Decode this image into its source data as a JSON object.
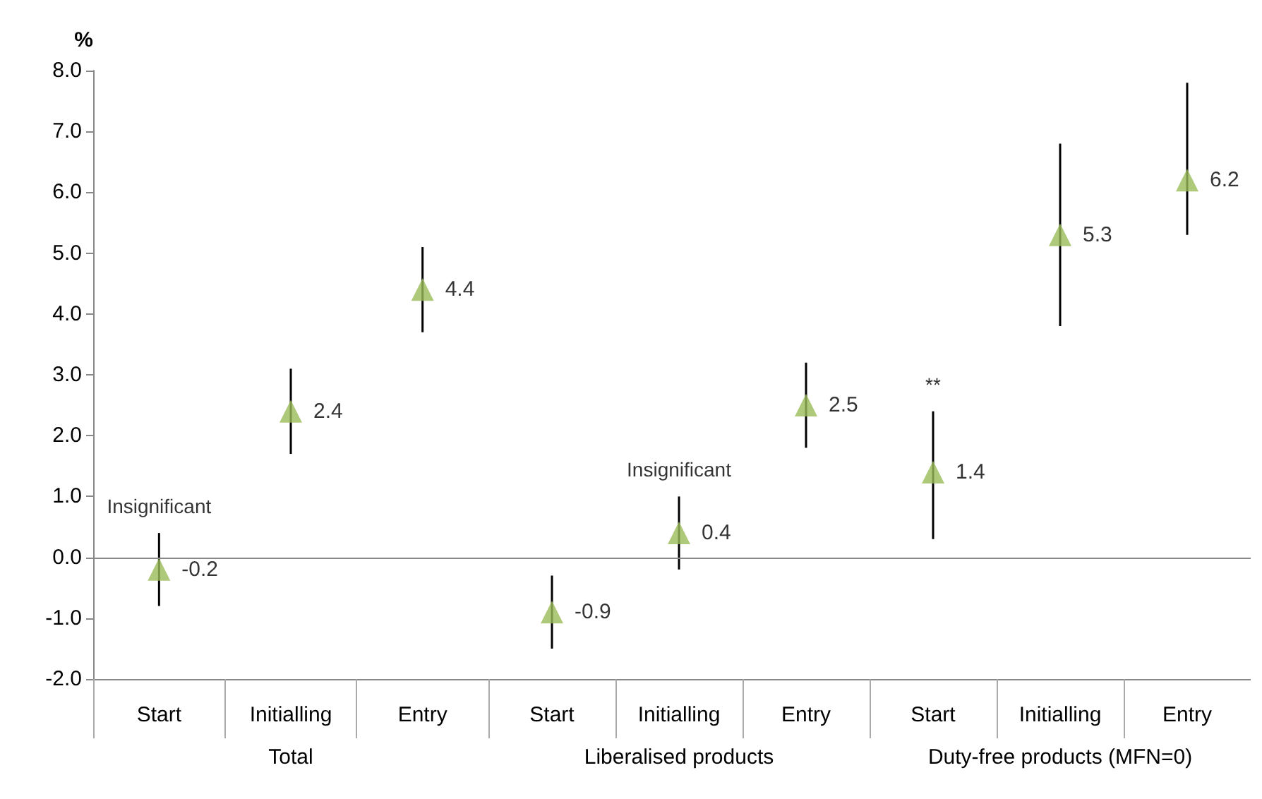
{
  "chart_data": [
    {
      "type": "scatter",
      "xlabel": "Total",
      "ylabel": "%",
      "categories": [
        "Start",
        "Initialling",
        "Entry"
      ],
      "values": [
        -0.2,
        2.4,
        4.4
      ],
      "errors": [
        [
          -0.8,
          0.4
        ],
        [
          1.7,
          3.1
        ],
        [
          3.7,
          5.1
        ]
      ],
      "color": "#9bbb59",
      "marker": "triangle",
      "data_labels": true,
      "ylim": [
        -2,
        8
      ],
      "yticks": [
        {
          "value": -2,
          "label": "-2.0"
        },
        {
          "value": -1,
          "label": "-1.0"
        },
        {
          "value": 0,
          "label": "0.0"
        },
        {
          "value": 1,
          "label": "1.0"
        },
        {
          "value": 2,
          "label": "2.0"
        },
        {
          "value": 3,
          "label": "3.0"
        },
        {
          "value": 4,
          "label": "4.0"
        },
        {
          "value": 5,
          "label": "5.0"
        },
        {
          "value": 6,
          "label": "6.0"
        },
        {
          "value": 7,
          "label": "7.0"
        },
        {
          "value": 8,
          "label": "8.0"
        }
      ],
      "annotations": [
        {
          "text": "Insignificant",
          "x": "Start",
          "y": 0.4
        }
      ],
      "ref_lines": [
        {
          "axis": "y",
          "value": 0,
          "color": "#888888"
        }
      ],
      "grid": false
    },
    {
      "type": "scatter",
      "xlabel": "Liberalised products",
      "categories": [
        "Start",
        "Initialling",
        "Entry"
      ],
      "values": [
        -0.9,
        0.4,
        2.5
      ],
      "errors": [
        [
          -1.5,
          -0.3
        ],
        [
          -0.2,
          1.0
        ],
        [
          1.8,
          3.2
        ]
      ],
      "color": "#9bbb59",
      "marker": "triangle",
      "data_labels": true,
      "ylim": [
        -2,
        8
      ],
      "tick_labels": "x",
      "annotations": [
        {
          "text": "Insignificant",
          "x": "Initialling",
          "y": 1.0
        }
      ],
      "ref_lines": [
        {
          "axis": "y",
          "value": 0,
          "color": "#888888"
        }
      ],
      "grid": false
    },
    {
      "type": "scatter",
      "xlabel": "Duty-free products (MFN=0)",
      "categories": [
        "Start",
        "Initialling",
        "Entry"
      ],
      "values": [
        1.4,
        5.3,
        6.2
      ],
      "errors": [
        [
          0.3,
          2.4
        ],
        [
          3.8,
          6.8
        ],
        [
          5.3,
          7.8
        ]
      ],
      "color": "#9bbb59",
      "marker": "triangle",
      "data_labels": true,
      "ylim": [
        -2,
        8
      ],
      "tick_labels": "x",
      "annotations": [
        {
          "text": "**",
          "x": "Start",
          "y": 2.4
        }
      ],
      "ref_lines": [
        {
          "axis": "y",
          "value": 0,
          "color": "#888888"
        }
      ],
      "grid": false
    }
  ]
}
